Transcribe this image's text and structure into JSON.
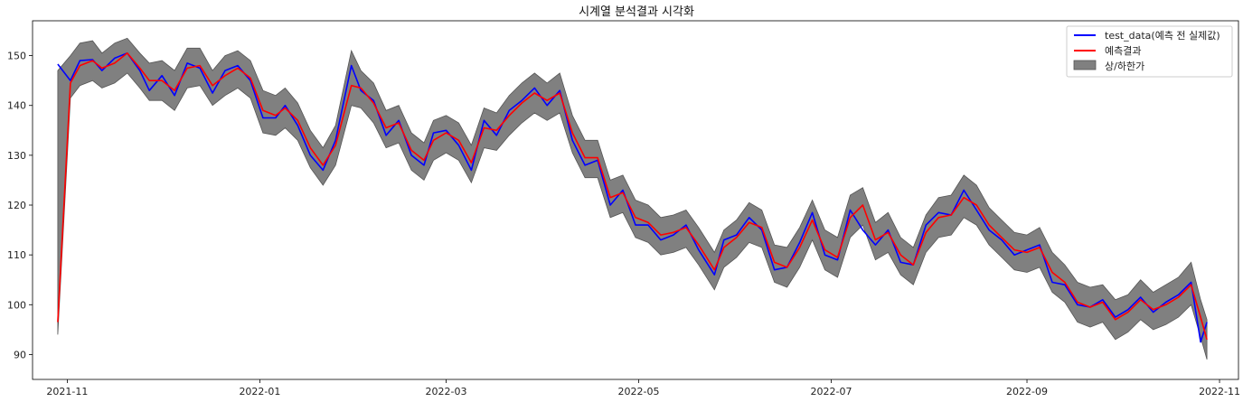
{
  "chart_data": {
    "type": "line",
    "title": "시계열 분석결과 시각화",
    "xlabel": "",
    "ylabel": "",
    "x_tick_labels": [
      "2021-11",
      "2022-01",
      "2022-03",
      "2022-05",
      "2022-07",
      "2022-09",
      "2022-11"
    ],
    "x_tick_dates": [
      "2021-11-01",
      "2022-01-01",
      "2022-03-01",
      "2022-05-01",
      "2022-07-01",
      "2022-09-01",
      "2022-11-01"
    ],
    "xlim": [
      "2021-10-21",
      "2022-11-07"
    ],
    "y_ticks": [
      90,
      100,
      110,
      120,
      130,
      140,
      150
    ],
    "ylim": [
      85,
      157
    ],
    "grid": false,
    "legend": "top-right",
    "colors": {
      "actual": "#0000ff",
      "pred": "#ff0000",
      "band": "#808080"
    },
    "series": [
      {
        "name": "test_data(예측 전 실제값)",
        "kind": "line",
        "color": "#0000ff"
      },
      {
        "name": "예측결과",
        "kind": "line",
        "color": "#ff0000"
      },
      {
        "name": "상/하한가",
        "kind": "band",
        "color": "#808080"
      }
    ],
    "x": [
      "2021-10-29",
      "2021-11-02",
      "2021-11-05",
      "2021-11-09",
      "2021-11-12",
      "2021-11-16",
      "2021-11-20",
      "2021-11-24",
      "2021-11-27",
      "2021-12-01",
      "2021-12-05",
      "2021-12-09",
      "2021-12-13",
      "2021-12-17",
      "2021-12-21",
      "2021-12-25",
      "2021-12-29",
      "2022-01-02",
      "2022-01-06",
      "2022-01-09",
      "2022-01-13",
      "2022-01-17",
      "2022-01-21",
      "2022-01-25",
      "2022-01-30",
      "2022-02-02",
      "2022-02-06",
      "2022-02-10",
      "2022-02-14",
      "2022-02-18",
      "2022-02-22",
      "2022-02-25",
      "2022-03-01",
      "2022-03-05",
      "2022-03-09",
      "2022-03-13",
      "2022-03-17",
      "2022-03-21",
      "2022-03-25",
      "2022-03-29",
      "2022-04-02",
      "2022-04-06",
      "2022-04-10",
      "2022-04-14",
      "2022-04-18",
      "2022-04-22",
      "2022-04-26",
      "2022-04-30",
      "2022-05-04",
      "2022-05-08",
      "2022-05-12",
      "2022-05-16",
      "2022-05-20",
      "2022-05-25",
      "2022-05-28",
      "2022-06-01",
      "2022-06-05",
      "2022-06-09",
      "2022-06-13",
      "2022-06-17",
      "2022-06-21",
      "2022-06-25",
      "2022-06-29",
      "2022-07-03",
      "2022-07-07",
      "2022-07-11",
      "2022-07-15",
      "2022-07-19",
      "2022-07-23",
      "2022-07-27",
      "2022-07-31",
      "2022-08-04",
      "2022-08-08",
      "2022-08-12",
      "2022-08-16",
      "2022-08-20",
      "2022-08-24",
      "2022-08-28",
      "2022-09-01",
      "2022-09-05",
      "2022-09-09",
      "2022-09-13",
      "2022-09-17",
      "2022-09-21",
      "2022-09-25",
      "2022-09-29",
      "2022-10-03",
      "2022-10-07",
      "2022-10-11",
      "2022-10-15",
      "2022-10-19",
      "2022-10-23",
      "2022-10-26",
      "2022-10-28"
    ],
    "actual": [
      148.3,
      145.0,
      149.0,
      149.2,
      147.0,
      149.5,
      150.5,
      147.0,
      143.0,
      146.0,
      142.0,
      148.5,
      147.5,
      142.5,
      147.0,
      148.0,
      145.0,
      137.5,
      137.5,
      140.0,
      136.0,
      130.0,
      127.0,
      133.0,
      148.0,
      143.0,
      141.0,
      134.0,
      137.0,
      130.0,
      128.0,
      134.5,
      135.0,
      132.0,
      127.0,
      137.0,
      134.0,
      139.0,
      141.0,
      143.5,
      140.0,
      143.0,
      133.0,
      128.0,
      129.0,
      120.0,
      123.0,
      116.0,
      116.0,
      113.0,
      114.0,
      116.0,
      111.0,
      106.0,
      113.0,
      114.0,
      117.5,
      115.0,
      107.0,
      107.5,
      112.5,
      118.5,
      110.0,
      109.0,
      119.0,
      115.0,
      112.0,
      115.0,
      108.5,
      108.0,
      116.0,
      118.5,
      118.0,
      123.0,
      119.0,
      115.0,
      113.0,
      110.0,
      111.0,
      112.0,
      104.5,
      104.0,
      100.0,
      99.5,
      101.0,
      97.5,
      99.0,
      101.5,
      98.5,
      100.5,
      102.0,
      104.5,
      92.5,
      96.5
    ],
    "predicted": [
      96.5,
      144.5,
      148.0,
      149.0,
      147.5,
      148.5,
      150.5,
      147.5,
      145.0,
      145.0,
      143.0,
      147.5,
      148.0,
      144.0,
      146.0,
      147.5,
      145.5,
      139.0,
      138.0,
      139.5,
      137.0,
      131.5,
      128.0,
      132.0,
      144.0,
      143.5,
      140.5,
      135.5,
      136.5,
      131.0,
      129.0,
      133.0,
      134.5,
      133.0,
      128.5,
      135.5,
      135.0,
      138.0,
      140.5,
      142.5,
      141.0,
      142.5,
      134.5,
      129.5,
      129.5,
      121.5,
      122.5,
      117.5,
      116.5,
      114.0,
      114.5,
      115.5,
      112.0,
      107.0,
      111.5,
      113.5,
      116.5,
      115.5,
      108.5,
      107.5,
      111.5,
      117.0,
      111.0,
      109.5,
      117.5,
      120.0,
      113.0,
      114.5,
      110.0,
      108.0,
      114.5,
      117.5,
      118.0,
      121.5,
      120.0,
      116.0,
      113.5,
      111.0,
      110.5,
      111.5,
      106.5,
      104.5,
      100.5,
      99.5,
      100.5,
      97.0,
      98.5,
      101.0,
      99.0,
      100.0,
      101.5,
      104.0,
      97.5,
      93.0
    ],
    "upper": [
      147.0,
      150.0,
      152.5,
      153.0,
      150.5,
      152.5,
      153.5,
      150.5,
      148.5,
      149.0,
      147.0,
      151.5,
      151.5,
      147.0,
      150.0,
      151.0,
      149.0,
      143.0,
      142.0,
      143.5,
      140.5,
      135.0,
      131.5,
      136.0,
      151.0,
      147.0,
      144.5,
      139.0,
      140.0,
      134.5,
      132.5,
      137.0,
      138.0,
      136.5,
      132.0,
      139.5,
      138.5,
      142.0,
      144.5,
      146.5,
      144.5,
      146.5,
      138.0,
      133.0,
      133.0,
      125.0,
      126.0,
      121.0,
      120.0,
      117.5,
      118.0,
      119.0,
      115.5,
      110.5,
      115.0,
      117.0,
      120.5,
      119.0,
      112.0,
      111.5,
      115.5,
      121.0,
      115.0,
      113.5,
      122.0,
      123.5,
      116.5,
      118.5,
      113.5,
      111.5,
      118.0,
      121.5,
      122.0,
      126.0,
      124.0,
      119.5,
      117.0,
      114.5,
      114.0,
      115.5,
      110.5,
      108.0,
      104.5,
      103.5,
      104.0,
      101.0,
      102.0,
      105.0,
      102.5,
      104.0,
      105.5,
      108.5,
      101.0,
      97.0
    ],
    "lower": [
      94.0,
      141.5,
      144.0,
      145.0,
      143.5,
      144.5,
      146.5,
      143.5,
      141.0,
      141.0,
      139.0,
      143.5,
      144.0,
      140.0,
      142.0,
      143.5,
      141.5,
      134.5,
      134.0,
      135.5,
      133.0,
      127.5,
      124.0,
      128.0,
      140.0,
      139.5,
      136.5,
      131.5,
      132.5,
      127.0,
      125.0,
      129.0,
      130.5,
      129.0,
      124.5,
      131.5,
      131.0,
      134.0,
      136.5,
      138.5,
      137.0,
      138.5,
      130.5,
      125.5,
      125.5,
      117.5,
      118.5,
      113.5,
      112.5,
      110.0,
      110.5,
      111.5,
      108.0,
      103.0,
      107.5,
      109.5,
      112.5,
      111.5,
      104.5,
      103.5,
      107.5,
      113.0,
      107.0,
      105.5,
      113.5,
      116.0,
      109.0,
      110.5,
      106.0,
      104.0,
      110.5,
      113.5,
      114.0,
      117.5,
      116.0,
      112.0,
      109.5,
      107.0,
      106.5,
      107.5,
      102.5,
      100.5,
      96.5,
      95.5,
      96.5,
      93.0,
      94.5,
      97.0,
      95.0,
      96.0,
      97.5,
      100.0,
      93.5,
      89.0
    ]
  }
}
